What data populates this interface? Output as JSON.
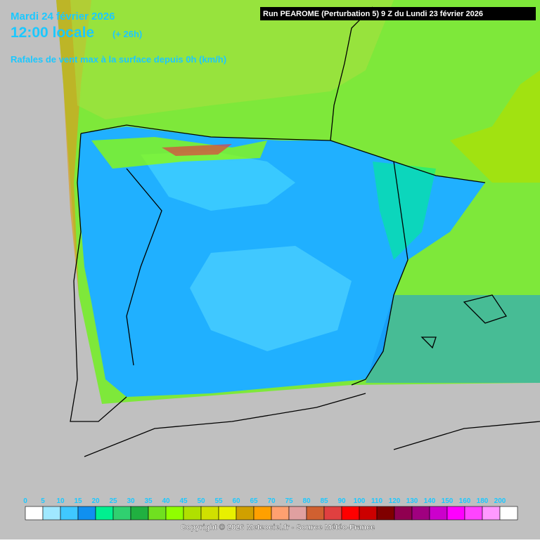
{
  "header": {
    "date": "Mardi 24 février 2026",
    "time": "12:00 locale",
    "offset": "(+ 26h)",
    "subtitle": "Rafales de vent max à la surface depuis 0h (km/h)",
    "run": "Run PEAROME (Perturbation 5) 9 Z du Lundi 23 février 2026"
  },
  "legend": {
    "values": [
      0,
      5,
      10,
      15,
      20,
      25,
      30,
      35,
      40,
      45,
      50,
      55,
      60,
      65,
      70,
      75,
      80,
      85,
      90,
      100,
      110,
      120,
      130,
      140,
      150,
      160,
      180,
      200
    ],
    "colors": [
      "#ffffff",
      "#a0e8ff",
      "#40c8ff",
      "#1090f0",
      "#00f090",
      "#30d070",
      "#20b040",
      "#70e020",
      "#90ff00",
      "#b0e000",
      "#d0e000",
      "#e8f000",
      "#d0a000",
      "#ffa000",
      "#ffa070",
      "#e0a0a0",
      "#d06030",
      "#e04040",
      "#ff0000",
      "#cc0000",
      "#800000",
      "#900050",
      "#a00080",
      "#cc00cc",
      "#ff00ff",
      "#ff44ff",
      "#ff99ff",
      "#ffffff"
    ]
  },
  "footer": {
    "copyright": "Copyright © 2026 Meteociel.fr - Source Météo-France"
  }
}
